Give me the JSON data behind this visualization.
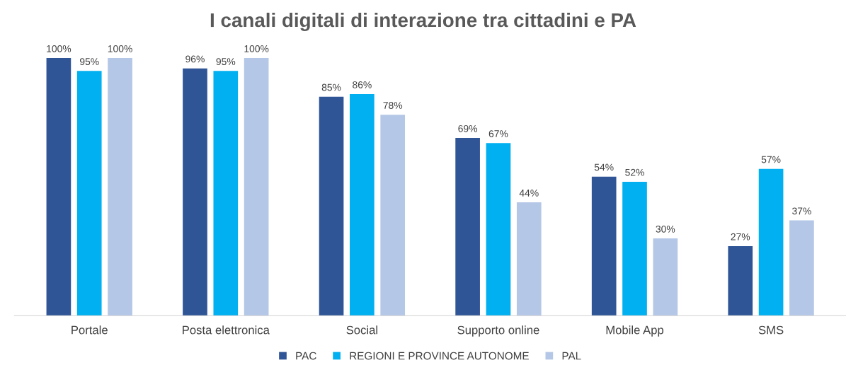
{
  "chart_data": {
    "type": "bar",
    "title": "I canali digitali di interazione tra cittadini e PA",
    "categories": [
      "Portale",
      "Posta elettronica",
      "Social",
      "Supporto online",
      "Mobile App",
      "SMS"
    ],
    "series": [
      {
        "name": "PAC",
        "color": "#2f5597",
        "values": [
          100,
          96,
          85,
          69,
          54,
          27
        ],
        "value_labels": [
          "100%",
          "96%",
          "85%",
          "69%",
          "54%",
          "27%"
        ]
      },
      {
        "name": "REGIONI E PROVINCE AUTONOME",
        "color": "#00b0f0",
        "values": [
          95,
          95,
          86,
          67,
          52,
          57
        ],
        "value_labels": [
          "95%",
          "95%",
          "86%",
          "67%",
          "52%",
          "57%"
        ]
      },
      {
        "name": "PAL",
        "color": "#b4c7e7",
        "values": [
          100,
          100,
          78,
          44,
          30,
          37
        ],
        "value_labels": [
          "100%",
          "100%",
          "78%",
          "44%",
          "30%",
          "37%"
        ]
      }
    ],
    "grid": false,
    "legend": "bottom"
  }
}
